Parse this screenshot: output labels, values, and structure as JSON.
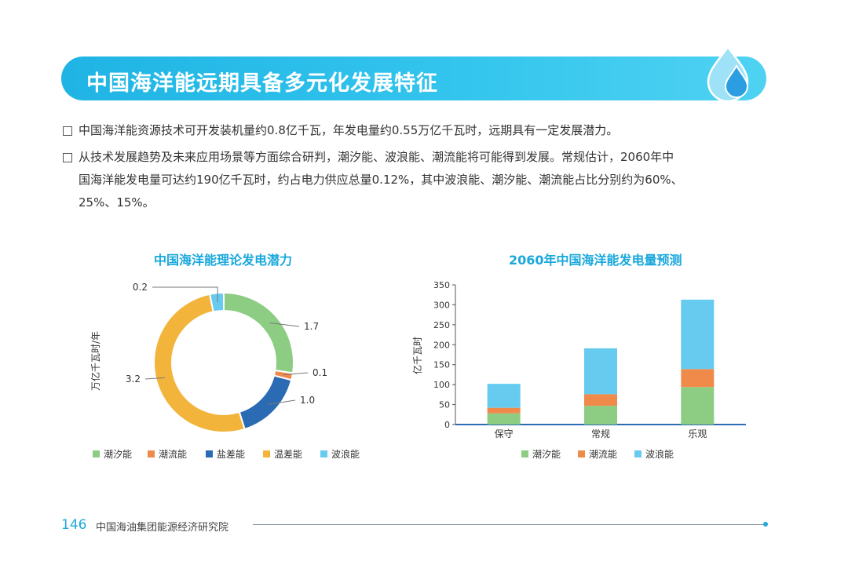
{
  "header": {
    "title": "中国海洋能远期具备多元化发展特征"
  },
  "bullets": [
    {
      "text": "中国海洋能资源技术可开发装机量约0.8亿千瓦，年发电量约0.55万亿千瓦时，远期具有一定发展潜力。"
    },
    {
      "line1": "从技术发展趋势及未来应用场景等方面综合研判，潮汐能、波浪能、潮流能将可能得到发展。常规估计，2060年中",
      "line2": "国海洋能发电量可达约190亿千瓦时，约占电力供应总量0.12%，其中波浪能、潮汐能、潮流能占比分别约为60%、",
      "line3": "25%、15%。"
    }
  ],
  "colors": {
    "tidal": "#8ccd83",
    "current": "#f08a4b",
    "salinity": "#2b6bb3",
    "thermal": "#f3b43c",
    "wave": "#67cbf0",
    "accent": "#1fa9dc"
  },
  "chart_data": [
    {
      "type": "pie",
      "title": "中国海洋能理论发电潜力",
      "ylabel": "万亿千瓦时/年",
      "slices": [
        {
          "label": "潮汐能",
          "value": 1.7,
          "color": "#8ccd83"
        },
        {
          "label": "潮流能",
          "value": 0.1,
          "color": "#f08a4b"
        },
        {
          "label": "盐差能",
          "value": 1.0,
          "color": "#2b6bb3"
        },
        {
          "label": "温差能",
          "value": 3.2,
          "color": "#f3b43c"
        },
        {
          "label": "波浪能",
          "value": 0.2,
          "color": "#67cbf0"
        }
      ],
      "value_labels": [
        "1.7",
        "0.1",
        "1.0",
        "3.2",
        "0.2"
      ]
    },
    {
      "type": "bar",
      "title": "2060年中国海洋能发电量预测",
      "ylabel": "亿千瓦时",
      "categories": [
        "保守",
        "常规",
        "乐观"
      ],
      "series": [
        {
          "name": "潮汐能",
          "values": [
            28,
            47,
            94
          ],
          "color": "#8ccd83"
        },
        {
          "name": "潮流能",
          "values": [
            14,
            29,
            45
          ],
          "color": "#f08a4b"
        },
        {
          "name": "波浪能",
          "values": [
            60,
            115,
            174
          ],
          "color": "#67cbf0"
        }
      ],
      "ylim": [
        0,
        350
      ],
      "yticks": [
        0,
        50,
        100,
        150,
        200,
        250,
        300,
        350
      ],
      "ytick_labels": [
        "0",
        "50",
        "100",
        "150",
        "200",
        "250",
        "300",
        "350"
      ]
    }
  ],
  "footer": {
    "page_number": "146",
    "org": "中国海油集团能源经济研究院"
  }
}
